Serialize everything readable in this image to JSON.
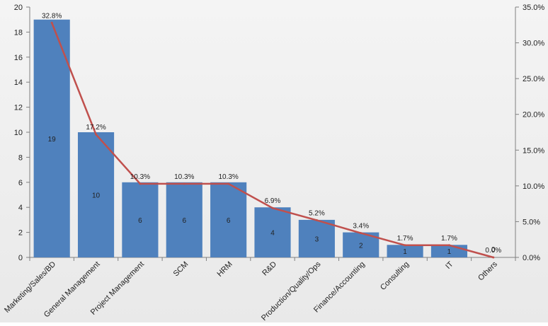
{
  "chart_data": {
    "type": "bar",
    "categories": [
      "Marketing/Sales/BD",
      "General Management",
      "Project Management",
      "SCM",
      "HRM",
      "R&D",
      "Production/Quality/Ops",
      "Finance/Accounting",
      "Consulting",
      "IT",
      "Others"
    ],
    "series": [
      {
        "type": "bar",
        "axis": "left",
        "values": [
          19,
          10,
          6,
          6,
          6,
          4,
          3,
          2,
          1,
          1,
          0
        ],
        "data_labels": [
          "19",
          "10",
          "6",
          "6",
          "6",
          "4",
          "3",
          "2",
          "1",
          "1",
          "0"
        ],
        "color": "#4f81bd"
      },
      {
        "type": "line",
        "axis": "right",
        "values": [
          32.8,
          17.2,
          10.3,
          10.3,
          10.3,
          6.9,
          5.2,
          3.4,
          1.7,
          1.7,
          0.0
        ],
        "data_labels": [
          "32.8%",
          "17.2%",
          "10.3%",
          "10.3%",
          "10.3%",
          "6.9%",
          "5.2%",
          "3.4%",
          "1.7%",
          "1.7%",
          "0.0%"
        ],
        "color": "#c0504d"
      }
    ],
    "y_left": {
      "min": 0,
      "max": 20,
      "ticks": [
        "0",
        "2",
        "4",
        "6",
        "8",
        "10",
        "12",
        "14",
        "16",
        "18",
        "20"
      ]
    },
    "y_right": {
      "min": 0,
      "max": 35,
      "ticks": [
        "0.0%",
        "5.0%",
        "10.0%",
        "15.0%",
        "20.0%",
        "25.0%",
        "30.0%",
        "35.0%"
      ]
    },
    "grid": false,
    "legend": "none"
  }
}
